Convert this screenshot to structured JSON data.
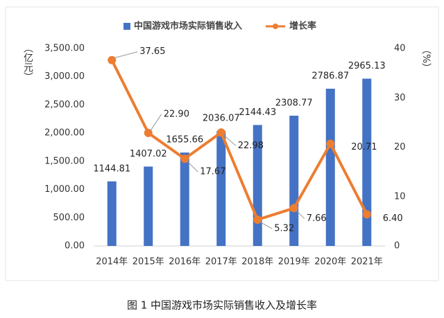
{
  "chart_data": {
    "type": "bar",
    "title": "图 1 中国游戏市场实际销售收入及增长率",
    "y_label": "（亿元）",
    "y2_label": "（%）",
    "categories": [
      "2014年",
      "2015年",
      "2016年",
      "2017年",
      "2018年",
      "2019年",
      "2020年",
      "2021年"
    ],
    "series": [
      {
        "name": "中国游戏市场实际销售收入",
        "type": "bar",
        "color": "#4472c4",
        "values": [
          1144.81,
          1407.02,
          1655.66,
          2036.07,
          2144.43,
          2308.77,
          2786.87,
          2965.13
        ]
      },
      {
        "name": "增长率",
        "type": "line",
        "axis": "y2",
        "color": "#ed7d31",
        "values": [
          37.65,
          22.9,
          17.67,
          22.98,
          5.32,
          7.66,
          20.71,
          6.4
        ],
        "value_labels": [
          "37.65",
          "22.90",
          "17.67",
          "22.98",
          "5.32",
          "7.66",
          "20.71",
          "6.40"
        ]
      }
    ],
    "ylim": [
      0,
      3500
    ],
    "yticks": [
      {
        "value": 0,
        "label": "0.00"
      },
      {
        "value": 500,
        "label": "500.00"
      },
      {
        "value": 1000,
        "label": "1,000.00"
      },
      {
        "value": 1500,
        "label": "1,500.00"
      },
      {
        "value": 2000,
        "label": "2,000.00"
      },
      {
        "value": 2500,
        "label": "2,500.00"
      },
      {
        "value": 3000,
        "label": "3,000.00"
      },
      {
        "value": 3500,
        "label": "3,500.00"
      }
    ],
    "y2lim": [
      0,
      40
    ],
    "y2ticks": [
      0,
      10,
      20,
      30,
      40
    ],
    "legend": "top"
  }
}
